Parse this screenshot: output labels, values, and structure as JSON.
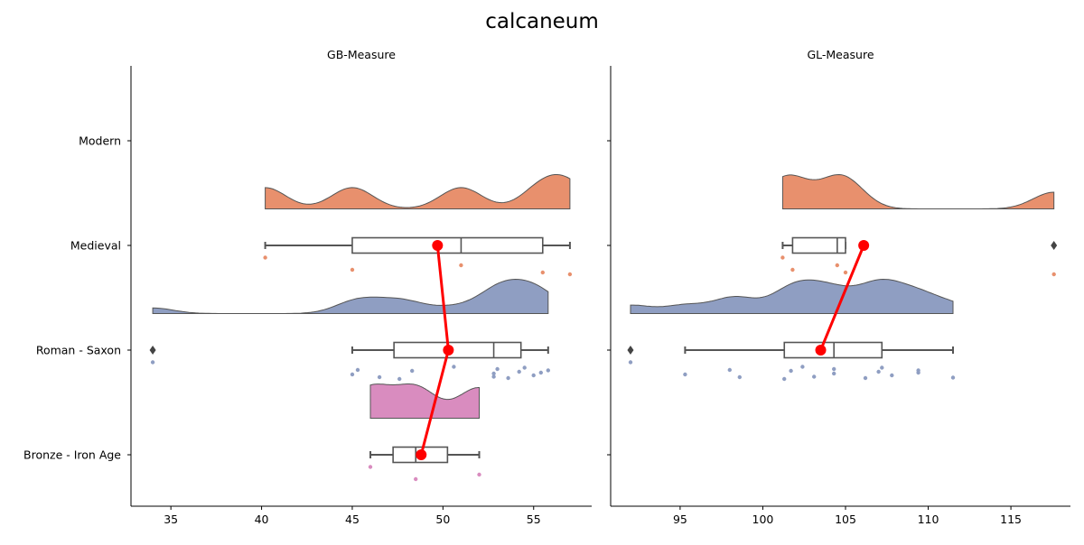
{
  "title": "calcaneum",
  "chart_data": {
    "type": "raincloud",
    "title": "calcaneum",
    "categories": [
      "Modern",
      "Medieval",
      "Roman - Saxon",
      "Bronze - Iron Age"
    ],
    "colors": {
      "Medieval": "#e8906d",
      "Roman - Saxon": "#8f9ec2",
      "Bronze - Iron Age": "#d98cbf",
      "mean_line": "#ff0000",
      "box": "#555555"
    },
    "panels": [
      {
        "title": "GB-Measure",
        "xlim": [
          32.8,
          58.2
        ],
        "xticks": [
          35,
          40,
          45,
          50,
          55
        ],
        "groups": [
          {
            "category": "Medieval",
            "points": [
              40.2,
              45.0,
              51.0,
              55.5,
              57.0
            ],
            "box": {
              "whislo": 40.2,
              "q1": 45.0,
              "med": 51.0,
              "q3": 55.5,
              "whishi": 57.0,
              "fliers": []
            },
            "mean": 49.7
          },
          {
            "category": "Roman - Saxon",
            "points": [
              34.0,
              45.0,
              45.3,
              46.5,
              47.6,
              48.3,
              50.6,
              52.8,
              52.8,
              53.0,
              53.6,
              54.2,
              54.5,
              55.0,
              55.4,
              55.8
            ],
            "box": {
              "whislo": 45.0,
              "q1": 47.3,
              "med": 52.8,
              "q3": 54.3,
              "whishi": 55.8,
              "fliers": [
                34.0
              ]
            },
            "mean": 50.3
          },
          {
            "category": "Bronze - Iron Age",
            "points": [
              46.0,
              48.5,
              52.0
            ],
            "box": {
              "whislo": 46.0,
              "q1": 47.25,
              "med": 48.5,
              "q3": 50.25,
              "whishi": 52.0,
              "fliers": []
            },
            "mean": 48.8
          }
        ]
      },
      {
        "title": "GL-Measure",
        "xlim": [
          90.8,
          118.6
        ],
        "xticks": [
          95,
          100,
          105,
          110,
          115
        ],
        "groups": [
          {
            "category": "Medieval",
            "points": [
              101.2,
              101.8,
              104.5,
              105.0,
              117.6
            ],
            "box": {
              "whislo": 101.2,
              "q1": 101.8,
              "med": 104.5,
              "q3": 105.0,
              "whishi": 105.0,
              "fliers": [
                117.6
              ]
            },
            "mean": 106.1
          },
          {
            "category": "Roman - Saxon",
            "points": [
              92.0,
              95.3,
              98.0,
              98.6,
              101.3,
              101.7,
              102.4,
              103.1,
              104.3,
              104.3,
              106.2,
              107.0,
              107.2,
              107.8,
              109.4,
              109.4,
              111.5
            ],
            "box": {
              "whislo": 95.3,
              "q1": 101.3,
              "med": 104.3,
              "q3": 107.2,
              "whishi": 111.5,
              "fliers": [
                92.0
              ]
            },
            "mean": 103.5
          }
        ]
      }
    ]
  }
}
